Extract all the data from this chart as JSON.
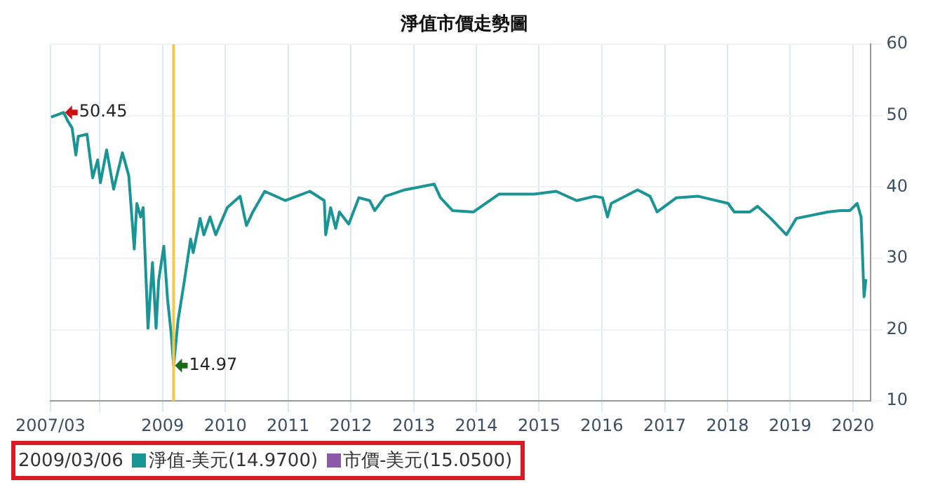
{
  "chart_data": {
    "type": "line",
    "title": "淨值市價走勢圖",
    "xlim": [
      "2007-03-20",
      "2020-04-15"
    ],
    "xticks": [
      {
        "value": "2007-03-20",
        "label": "2007/03"
      },
      {
        "value": "2008-01-01",
        "label": null
      },
      {
        "value": "2009-01-01",
        "label": "2009"
      },
      {
        "value": "2010-01-01",
        "label": "2010"
      },
      {
        "value": "2011-01-01",
        "label": "2011"
      },
      {
        "value": "2012-01-01",
        "label": "2012"
      },
      {
        "value": "2013-01-01",
        "label": "2013"
      },
      {
        "value": "2014-01-01",
        "label": "2014"
      },
      {
        "value": "2015-01-01",
        "label": "2015"
      },
      {
        "value": "2016-01-01",
        "label": "2016"
      },
      {
        "value": "2017-01-01",
        "label": "2017"
      },
      {
        "value": "2018-01-01",
        "label": "2018"
      },
      {
        "value": "2019-01-01",
        "label": "2019"
      },
      {
        "value": "2020-01-01",
        "label": "2020"
      }
    ],
    "ylim": [
      10,
      60
    ],
    "yticks": [
      10,
      20,
      30,
      40,
      50,
      60
    ],
    "grid": true,
    "legend": "bottom",
    "x": [
      "2007-03-24",
      "2007-06-05",
      "2007-06-28",
      "2007-07-24",
      "2007-08-15",
      "2007-08-29",
      "2007-10-19",
      "2007-11-21",
      "2007-12-20",
      "2008-01-05",
      "2008-02-10",
      "2008-03-22",
      "2008-05-12",
      "2008-06-18",
      "2008-07-20",
      "2008-08-04",
      "2008-08-26",
      "2008-09-10",
      "2008-10-08",
      "2008-11-03",
      "2008-11-24",
      "2008-12-09",
      "2009-01-08",
      "2009-01-30",
      "2009-02-20",
      "2009-03-06",
      "2009-04-01",
      "2009-05-08",
      "2009-06-13",
      "2009-06-28",
      "2009-08-07",
      "2009-08-29",
      "2009-10-04",
      "2009-11-06",
      "2010-01-12",
      "2010-03-28",
      "2010-05-04",
      "2010-06-10",
      "2010-08-18",
      "2010-12-17",
      "2011-05-08",
      "2011-07-31",
      "2011-08-08",
      "2011-09-06",
      "2011-10-05",
      "2011-10-27",
      "2011-12-20",
      "2012-02-17",
      "2012-04-20",
      "2012-05-19",
      "2012-07-20",
      "2012-11-10",
      "2013-05-01",
      "2013-06-06",
      "2013-08-15",
      "2013-12-15",
      "2014-05-12",
      "2014-12-03",
      "2015-04-10",
      "2015-08-08",
      "2015-11-20",
      "2016-01-05",
      "2016-02-03",
      "2016-02-25",
      "2016-07-27",
      "2016-10-08",
      "2016-11-18",
      "2017-03-10",
      "2017-07-16",
      "2018-01-05",
      "2018-02-10",
      "2018-05-12",
      "2018-06-25",
      "2018-09-10",
      "2018-12-10",
      "2019-02-06",
      "2019-08-08",
      "2019-10-20",
      "2019-12-15",
      "2020-01-26",
      "2020-02-18",
      "2020-03-06",
      "2020-03-17"
    ],
    "series": [
      {
        "name": "淨值-美元(14.9700)",
        "color": "#1a9494",
        "values": [
          49.8,
          50.45,
          49.3,
          48.3,
          44.5,
          47.1,
          47.4,
          41.3,
          43.8,
          40.6,
          45.2,
          39.7,
          44.8,
          41.6,
          31.3,
          37.7,
          35.8,
          37.1,
          20.2,
          29.4,
          20.2,
          26.9,
          31.7,
          24.2,
          19.4,
          14.97,
          21.3,
          26.9,
          32.7,
          30.8,
          35.6,
          33.3,
          35.8,
          33.3,
          37.1,
          38.7,
          34.6,
          36.5,
          39.4,
          38.1,
          39.4,
          38.1,
          33.3,
          37.1,
          34.2,
          36.5,
          34.8,
          38.5,
          38.1,
          36.7,
          38.7,
          39.6,
          40.4,
          38.5,
          36.7,
          36.5,
          39.0,
          39.0,
          39.4,
          38.1,
          38.7,
          38.5,
          35.8,
          37.7,
          39.6,
          38.7,
          36.5,
          38.5,
          38.7,
          37.7,
          36.5,
          36.5,
          37.3,
          35.6,
          33.3,
          35.6,
          36.5,
          36.7,
          36.7,
          37.7,
          35.8,
          24.6,
          27.1
        ]
      },
      {
        "name": "市價-美元(15.0500)",
        "color": "#8a5aa8",
        "values": [
          null,
          null,
          null,
          null,
          null,
          null,
          null,
          null,
          null,
          null,
          null,
          null,
          null,
          null,
          null,
          null,
          null,
          null,
          null,
          null,
          null,
          null,
          null,
          null,
          null,
          null,
          null,
          null,
          null,
          null,
          null,
          null,
          null,
          null,
          null,
          null,
          null,
          null,
          null,
          null,
          null,
          null,
          null,
          null,
          null,
          null,
          null,
          null,
          null,
          null,
          null,
          null,
          null,
          null,
          null,
          null,
          null,
          null,
          null,
          null,
          null,
          null,
          null,
          null,
          null,
          null,
          null,
          null,
          null,
          null,
          null,
          null,
          null,
          null,
          null,
          null,
          null,
          null,
          null,
          null,
          null,
          null,
          null
        ]
      }
    ],
    "ref_lines": [
      {
        "axis": "x",
        "value": "2009-03-06",
        "color": "#f0c850"
      }
    ],
    "annotations": [
      "2009/03/06",
      {
        "text": "50.45",
        "x": "2007-06-05",
        "y": 50.45
      },
      {
        "text": "14.97",
        "x": "2009-03-06",
        "y": 14.97
      }
    ]
  }
}
